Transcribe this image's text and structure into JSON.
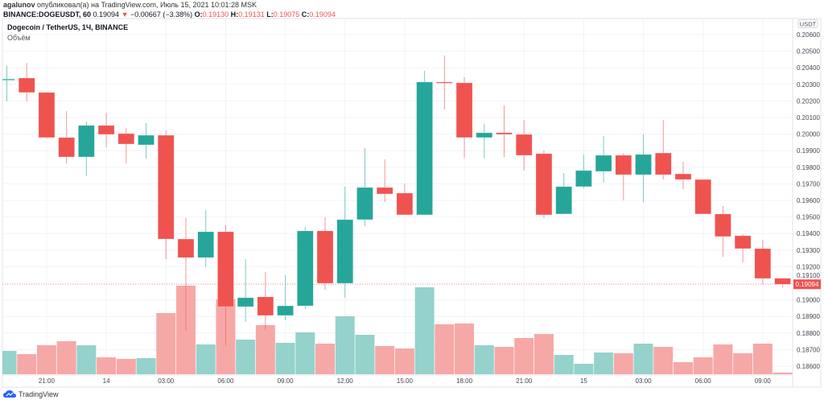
{
  "header": {
    "author": "agalunov",
    "published": "опубликовал(а) на TradingView.com, Июль 15, 2021 10:01:28 MSK",
    "symbol": "BINANCE:DOGEUSDT, 60",
    "last": "0.19094",
    "change_icon": "triangle-down-icon",
    "change": "−0.00667 (−3.38%)",
    "o_label": "O:",
    "o": "0.19130",
    "h_label": "H:",
    "h": "0.19131",
    "l_label": "L:",
    "l": "0.19075",
    "c_label": "C:",
    "c": "0.19094"
  },
  "legend": {
    "title": "Dogecoin / TetherUS, 1Ч, BINANCE",
    "volume": "Объём"
  },
  "footer": {
    "brand": "TradingView"
  },
  "colors": {
    "up": "#26a69a",
    "down": "#ef5350",
    "up_volume": "#94d2cb",
    "down_volume": "#f6a8a7",
    "grid": "#f0f3fa"
  },
  "chart_data": {
    "type": "candlestick",
    "currency_badge": "USDT",
    "last_price_label": "0.19094",
    "last_price": 0.19094,
    "ylim": [
      0.1855,
      0.2064
    ],
    "y_ticks": [
      "0.20600",
      "0.20500",
      "0.20400",
      "0.20300",
      "0.20200",
      "0.20100",
      "0.20000",
      "0.19900",
      "0.19800",
      "0.19700",
      "0.19600",
      "0.19500",
      "0.19400",
      "0.19300",
      "0.19200",
      "0.19100",
      "0.19000",
      "0.18900",
      "0.18800",
      "0.18700",
      "0.18600"
    ],
    "x_ticks": [
      {
        "label": "21:00",
        "index": 2
      },
      {
        "label": "14",
        "index": 5
      },
      {
        "label": "03:00",
        "index": 8
      },
      {
        "label": "06:00",
        "index": 11
      },
      {
        "label": "09:00",
        "index": 14
      },
      {
        "label": "12:00",
        "index": 17
      },
      {
        "label": "15:00",
        "index": 20
      },
      {
        "label": "18:00",
        "index": 23
      },
      {
        "label": "21:00",
        "index": 26
      },
      {
        "label": "15",
        "index": 29
      },
      {
        "label": "03:00",
        "index": 32
      },
      {
        "label": "06:00",
        "index": 35
      },
      {
        "label": "09:00",
        "index": 38
      }
    ],
    "ohlc": [
      [
        0.20328,
        0.20411,
        0.20197,
        0.20332
      ],
      [
        0.20338,
        0.2043,
        0.20197,
        0.20251
      ],
      [
        0.20251,
        0.20255,
        0.19974,
        0.19979
      ],
      [
        0.19979,
        0.20139,
        0.19823,
        0.19862
      ],
      [
        0.19862,
        0.20076,
        0.19746,
        0.20052
      ],
      [
        0.20052,
        0.20129,
        0.1992,
        0.19998
      ],
      [
        0.20003,
        0.20037,
        0.19823,
        0.1994
      ],
      [
        0.19935,
        0.20066,
        0.19853,
        0.19993
      ],
      [
        0.19993,
        0.20022,
        0.19246,
        0.19367
      ],
      [
        0.19367,
        0.19493,
        0.18814,
        0.19255
      ],
      [
        0.19255,
        0.19542,
        0.19197,
        0.19411
      ],
      [
        0.19411,
        0.1945,
        0.18722,
        0.18959
      ],
      [
        0.18959,
        0.19246,
        0.18867,
        0.19013
      ],
      [
        0.19018,
        0.19168,
        0.18819,
        0.18906
      ],
      [
        0.18906,
        0.19149,
        0.18877,
        0.18964
      ],
      [
        0.18964,
        0.1944,
        0.18945,
        0.19416
      ],
      [
        0.19416,
        0.19498,
        0.19061,
        0.191
      ],
      [
        0.191,
        0.19683,
        0.19013,
        0.19484
      ],
      [
        0.19484,
        0.19916,
        0.19445,
        0.19678
      ],
      [
        0.19678,
        0.19848,
        0.1959,
        0.19639
      ],
      [
        0.19644,
        0.19702,
        0.19513,
        0.19513
      ],
      [
        0.19513,
        0.20382,
        0.19513,
        0.20314
      ],
      [
        0.20314,
        0.20474,
        0.20149,
        0.20309
      ],
      [
        0.20309,
        0.20343,
        0.19857,
        0.19979
      ],
      [
        0.19979,
        0.20061,
        0.19857,
        0.20008
      ],
      [
        0.20008,
        0.20173,
        0.19862,
        0.19998
      ],
      [
        0.19998,
        0.20085,
        0.1978,
        0.19872
      ],
      [
        0.19882,
        0.19901,
        0.19493,
        0.19513
      ],
      [
        0.19518,
        0.19765,
        0.19518,
        0.19683
      ],
      [
        0.19683,
        0.19877,
        0.19673,
        0.1978
      ],
      [
        0.19775,
        0.19988,
        0.19707,
        0.19872
      ],
      [
        0.19872,
        0.19886,
        0.196,
        0.19755
      ],
      [
        0.19755,
        0.19998,
        0.1959,
        0.19877
      ],
      [
        0.19886,
        0.20085,
        0.19726,
        0.19755
      ],
      [
        0.1976,
        0.19833,
        0.19668,
        0.19726
      ],
      [
        0.19726,
        0.19726,
        0.19518,
        0.19518
      ],
      [
        0.19518,
        0.19566,
        0.1926,
        0.19382
      ],
      [
        0.19387,
        0.19396,
        0.19226,
        0.19309
      ],
      [
        0.19309,
        0.19362,
        0.19094,
        0.19129
      ],
      [
        0.1913,
        0.19131,
        0.19075,
        0.19094
      ]
    ],
    "volume_relative": [
      29,
      25,
      36,
      41,
      36,
      21,
      19,
      20,
      76,
      110,
      37,
      93,
      43,
      61,
      39,
      52,
      38,
      72,
      49,
      35,
      32,
      108,
      62,
      63,
      36,
      34,
      45,
      50,
      24,
      13,
      27,
      26,
      38,
      34,
      15,
      21,
      37,
      26,
      38,
      2
    ]
  }
}
